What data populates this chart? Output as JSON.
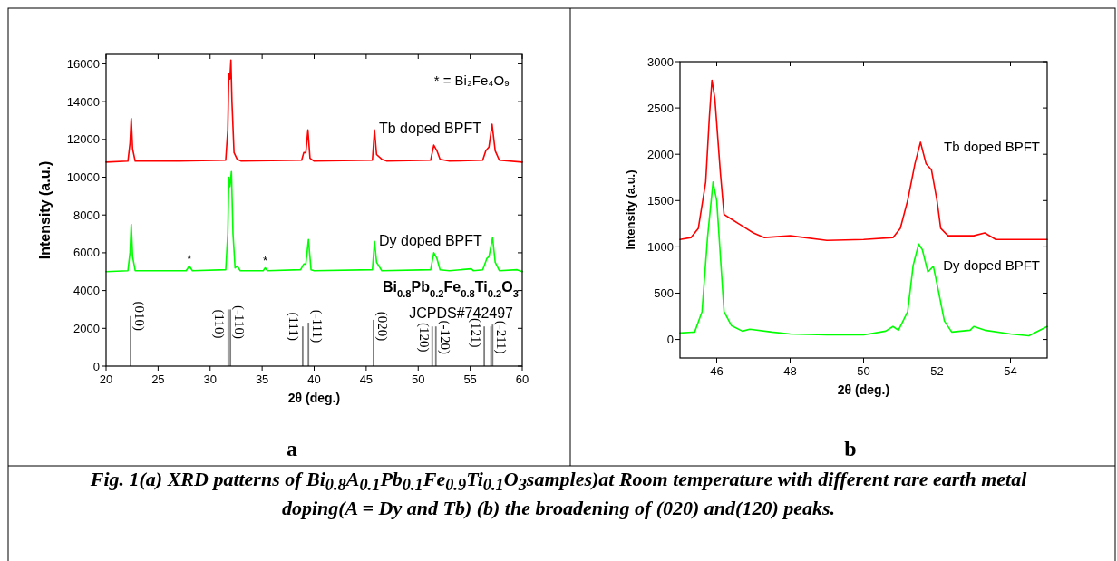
{
  "chart_data": [
    {
      "type": "line",
      "xlabel": "2θ (deg.)",
      "ylabel": "Intensity (a.u.)",
      "xlim": [
        20,
        60
      ],
      "xticks": [
        20,
        25,
        30,
        35,
        40,
        45,
        50,
        55,
        60
      ],
      "ylim": [
        0,
        16500
      ],
      "yticks": [
        0,
        2000,
        4000,
        6000,
        8000,
        10000,
        12000,
        14000,
        16000
      ],
      "series": [
        {
          "name": "Tb doped BPFT",
          "color": "#ff0000",
          "x": [
            20,
            22.1,
            22.3,
            22.42,
            22.55,
            22.8,
            27,
            31.5,
            31.7,
            31.8,
            31.9,
            32.0,
            32.1,
            32.3,
            32.6,
            33,
            38.8,
            39.0,
            39.2,
            39.4,
            39.6,
            40,
            45.6,
            45.8,
            46.0,
            46.5,
            47,
            51.2,
            51.5,
            51.8,
            52.1,
            53,
            56.2,
            56.5,
            56.8,
            57.1,
            57.4,
            57.8,
            60
          ],
          "values": [
            10800,
            10850,
            11800,
            13100,
            11500,
            10850,
            10850,
            10900,
            12500,
            15500,
            15200,
            16200,
            14000,
            11300,
            10950,
            10850,
            10900,
            11300,
            11300,
            12500,
            11000,
            10850,
            10900,
            12500,
            11200,
            10950,
            10850,
            10900,
            11700,
            11400,
            10950,
            10850,
            10900,
            11400,
            11600,
            12800,
            11400,
            10900,
            10800
          ]
        },
        {
          "name": "Dy doped BPFT",
          "color": "#00ff00",
          "x": [
            20,
            22.1,
            22.3,
            22.42,
            22.55,
            22.8,
            27.7,
            28.0,
            28.3,
            31.5,
            31.7,
            31.8,
            31.9,
            32.05,
            32.2,
            32.4,
            32.6,
            32.9,
            35.1,
            35.3,
            35.5,
            38.7,
            39.0,
            39.2,
            39.45,
            39.7,
            40,
            45.6,
            45.8,
            46.0,
            46.5,
            51.2,
            51.5,
            51.8,
            52.1,
            53,
            55.1,
            55.3,
            56.2,
            56.6,
            56.8,
            57.15,
            57.4,
            57.8,
            59.5,
            60
          ],
          "values": [
            5000,
            5050,
            6000,
            7500,
            5800,
            5050,
            5050,
            5300,
            5050,
            5100,
            7000,
            10000,
            9500,
            10300,
            7000,
            5200,
            5300,
            5050,
            5050,
            5200,
            5050,
            5100,
            5400,
            5400,
            6700,
            5100,
            5050,
            5100,
            6600,
            5500,
            5050,
            5100,
            6000,
            5700,
            5100,
            5050,
            5150,
            5050,
            5100,
            5700,
            5800,
            6800,
            5500,
            5050,
            5100,
            5000
          ]
        },
        {
          "type": "bar",
          "color": "#808080",
          "x": [
            22.35,
            31.75,
            31.95,
            38.9,
            39.45,
            45.7,
            51.35,
            51.7,
            56.35,
            57.0,
            57.15
          ],
          "values": [
            2650,
            3000,
            3000,
            2100,
            2300,
            2450,
            2100,
            2100,
            2100,
            2100,
            2200
          ]
        }
      ],
      "annotations": [
        "* = Bi₂Fe₄O₉",
        "Bi$_{0.8}$Pb$_{0.2}$Fe$_{0.8}$Ti$_{0.2}$O$_{3}$",
        "JCPDS#742497",
        "a",
        "Fig. 1(a) XRD patterns of Bi$_{0.8}$A$_{0.1}$Pb$_{0.1}$Fe$_{0.9}$Ti$_{0.1}$O$_{3}$samples)at Room temperature with different rare earth metal doping(A = Dy and Tb) (b) the broadening of (020) and(120) peaks.",
        {
          "text": "*",
          "x": 28.0,
          "y": 5300
        },
        {
          "text": "*",
          "x": 35.3,
          "y": 5200
        },
        {
          "text": "(010)",
          "x": 22.35,
          "y": 2650
        },
        {
          "text": "(110)",
          "x": 31.75,
          "y": 3000
        },
        {
          "text": "(-110)",
          "x": 31.95,
          "y": 3000
        },
        {
          "text": "(111)",
          "x": 38.9,
          "y": 2100
        },
        {
          "text": "(-111)",
          "x": 39.45,
          "y": 2300
        },
        {
          "text": "(020)",
          "x": 45.7,
          "y": 2450
        },
        {
          "text": "(120)",
          "x": 51.35,
          "y": 2100
        },
        {
          "text": "(-120)",
          "x": 51.7,
          "y": 2100
        },
        {
          "text": "(121)",
          "x": 56.35,
          "y": 2100
        },
        {
          "text": "(-211)",
          "x": 57.15,
          "y": 2200
        }
      ]
    },
    {
      "type": "line",
      "xlabel": "2θ (deg.)",
      "ylabel": "Intensity (a.u.)",
      "xlim": [
        45,
        55
      ],
      "xticks": [
        46,
        48,
        50,
        52,
        54
      ],
      "ylim": [
        -200,
        3000
      ],
      "yticks": [
        0,
        500,
        1000,
        1500,
        2000,
        2500,
        3000
      ],
      "series": [
        {
          "name": "Tb doped BPFT",
          "color": "#ff0000",
          "x": [
            45,
            45.3,
            45.5,
            45.7,
            45.8,
            45.87,
            45.95,
            46.1,
            46.2,
            46.4,
            46.6,
            47.0,
            47.3,
            48.0,
            49,
            50,
            50.8,
            51.0,
            51.2,
            51.4,
            51.55,
            51.7,
            51.85,
            52.0,
            52.1,
            52.3,
            53.0,
            53.3,
            53.6,
            55
          ],
          "values": [
            1080,
            1100,
            1200,
            1700,
            2400,
            2800,
            2600,
            1800,
            1350,
            1300,
            1250,
            1150,
            1100,
            1120,
            1070,
            1080,
            1100,
            1200,
            1500,
            1900,
            2130,
            1900,
            1830,
            1500,
            1200,
            1120,
            1120,
            1150,
            1080,
            1080
          ]
        },
        {
          "name": "Dy doped BPFT",
          "color": "#00ff00",
          "x": [
            45,
            45.4,
            45.6,
            45.75,
            45.9,
            46.0,
            46.1,
            46.2,
            46.4,
            46.7,
            46.9,
            47.5,
            48,
            49,
            50,
            50.6,
            50.8,
            50.95,
            51.2,
            51.35,
            51.5,
            51.6,
            51.75,
            51.9,
            52.0,
            52.2,
            52.4,
            52.9,
            53.0,
            53.3,
            54,
            54.5,
            55
          ],
          "values": [
            70,
            80,
            300,
            1100,
            1700,
            1500,
            900,
            300,
            150,
            90,
            110,
            80,
            60,
            50,
            50,
            90,
            140,
            100,
            300,
            800,
            1030,
            970,
            730,
            790,
            600,
            200,
            80,
            100,
            140,
            100,
            60,
            40,
            140
          ]
        }
      ],
      "annotations": [
        "b"
      ]
    }
  ]
}
